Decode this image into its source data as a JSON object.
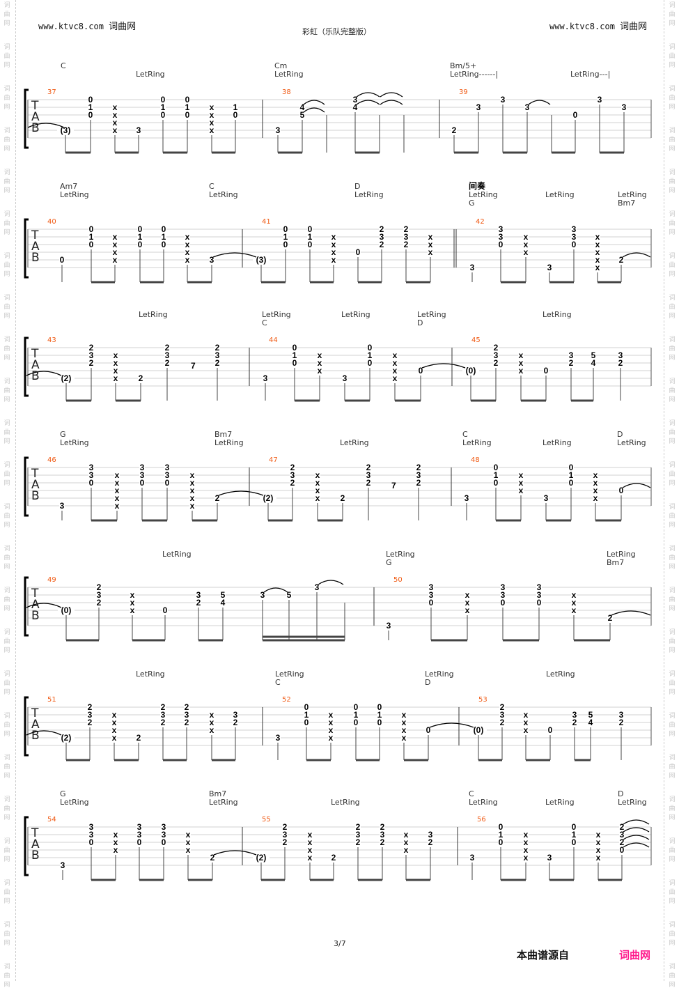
{
  "header": {
    "site_left": "www.ktvc8.com",
    "site_left_cn": "词曲网",
    "site_right": "www.ktvc8.com",
    "site_right_cn": "词曲网",
    "title": "彩虹（乐队完整版）"
  },
  "watermark": "词曲网",
  "colors": {
    "measure_number": "#f05a14",
    "brand": "#ff1a8c"
  },
  "systems": [
    {
      "labels": [
        [
          "C"
        ],
        [
          "LetRing"
        ],
        [
          "Cm",
          "LetRing"
        ],
        [
          "Bm/5+",
          "LetRing------|"
        ],
        [
          "LetRing---|"
        ]
      ],
      "measures": [
        {
          "number": "37",
          "columns": [
            ",,,,(3),",
            "0,1,0,,,",
            ",x,x,x,x,",
            ",,,,3,",
            "0,1,0,,,",
            "0,1,0,,,",
            ",x,x,x,x,",
            ",1,0,,,"
          ]
        },
        {
          "number": "38",
          "columns": [
            ",,,,3,",
            ",4,5,,,",
            ",,,,,",
            "3,4,,,,",
            ",,,,,",
            ",,,,,"
          ]
        },
        {
          "number": "39",
          "columns": [
            ",,,,2,",
            ",3,,,,",
            "3,,,,,",
            ",3,,,,",
            ",,,,,",
            ",,0,,,",
            "3,,,,,",
            ",3,,,,"
          ]
        }
      ]
    },
    {
      "labels": [
        [
          "Am7",
          "LetRing"
        ],
        [
          "C",
          "LetRing"
        ],
        [
          "D",
          "LetRing"
        ],
        [
          "间奏",
          "LetRing",
          "G"
        ],
        [
          "LetRing"
        ],
        [
          "LetRing",
          "Bm7"
        ]
      ],
      "measures": [
        {
          "number": "40",
          "columns": [
            ",,,,0,",
            "0,1,0,,,",
            ",x,x,x,x,",
            "0,1,0,,,",
            "0,1,0,,,",
            ",x,x,x,x,",
            ",,,,3,"
          ]
        },
        {
          "number": "41",
          "columns": [
            ",,,,(3),",
            "0,1,0,,,",
            "0,1,0,,,",
            ",x,x,x,x,",
            ",,,0,,",
            "2,3,2,,,",
            "2,3,2,,,",
            ",x,x,x,,"
          ]
        },
        {
          "number": "42",
          "columns": [
            ",,,,,3",
            "3,3,0,,,",
            ",x,x,x,,",
            ",,,,,3",
            "3,3,0,,,",
            ",x,x,x,x,x",
            ",,,,2,"
          ]
        }
      ]
    },
    {
      "labels": [
        [
          "LetRing"
        ],
        [
          "LetRing",
          "C"
        ],
        [
          "LetRing"
        ],
        [
          "LetRing",
          "D"
        ],
        [
          "LetRing"
        ]
      ],
      "measures": [
        {
          "number": "43",
          "columns": [
            ",,,,(2),",
            "2,3,2,,,",
            ",x,x,x,x,",
            ",,,,2,",
            "2,3,2,,,",
            "2,3,2,,,"
          ]
        },
        {
          "number": "44",
          "columns": [
            ",,,,3,",
            "0,1,0,,,",
            ",x,x,x,,",
            ",,,,3,",
            "0,1,0,,,",
            ",x,x,x,x,",
            ",,,0,,"
          ]
        },
        {
          "number": "45",
          "columns": [
            ",,,(0),,",
            "2,3,2,,,",
            ",x,x,x,,",
            ",,,0,,",
            ",3,2,,,",
            ",5,4,,,",
            ",3,2,,,"
          ]
        }
      ]
    },
    {
      "labels": [
        [
          "G",
          "LetRing"
        ],
        [
          "Bm7",
          "LetRing"
        ],
        [
          "LetRing"
        ],
        [
          "C",
          "LetRing"
        ],
        [
          "LetRing"
        ],
        [
          "D",
          "LetRing"
        ]
      ],
      "measures": [
        {
          "number": "46",
          "columns": [
            ",,,,,3",
            "3,3,0,,,",
            ",x,x,x,x,x",
            "3,3,0,,,",
            "3,3,0,,,",
            ",x,x,x,x,x",
            ",,,,2,"
          ]
        },
        {
          "number": "47",
          "columns": [
            ",,,,(2),",
            "2,3,2,,,",
            ",x,x,x,x,",
            ",,,,2,",
            "2,3,2,,,",
            "2,3,2,,,"
          ]
        },
        {
          "number": "48",
          "columns": [
            ",,,,3,",
            "0,1,0,,,",
            ",x,x,x,,",
            ",,,,3,",
            "0,1,0,,,",
            ",x,x,x,x,",
            ",,,0,,"
          ]
        }
      ]
    },
    {
      "labels": [
        [
          "LetRing"
        ],
        [
          "LetRing",
          "G"
        ],
        [
          "LetRing",
          "Bm7"
        ]
      ],
      "measures": [
        {
          "number": "49",
          "columns": [
            ",,,(0),,",
            "2,3,2,,,",
            ",x,x,x,,",
            ",,,0,,",
            ",3,2,,,",
            ",5,4,,,",
            ",3,,,,",
            ",5,,,,",
            "3,,,,,",
            ",,,,,"
          ]
        },
        {
          "number": "50",
          "columns": [
            ",,,,,3",
            "3,3,0,,,",
            ",x,x,x,,",
            "3,3,0,,,",
            "3,3,0,,,",
            ",x,x,x,,",
            ",,,,2,"
          ]
        }
      ]
    },
    {
      "labels": [
        [
          "LetRing"
        ],
        [
          "LetRing",
          "C"
        ],
        [
          "LetRing",
          "D"
        ],
        [
          "LetRing"
        ]
      ],
      "measures": [
        {
          "number": "51",
          "columns": [
            ",,,,(2),",
            "2,3,2,,,",
            ",x,x,x,x,",
            ",,,,2,",
            "2,3,2,,,",
            "2,3,2,,,",
            ",x,x,x,,",
            ",3,2,,,"
          ]
        },
        {
          "number": "52",
          "columns": [
            ",,,,3,",
            "0,1,0,,,",
            ",x,x,x,x,",
            "0,1,0,,,",
            "0,1,0,,,",
            ",x,x,x,x,",
            ",,,0,,"
          ]
        },
        {
          "number": "53",
          "columns": [
            ",,,(0),,",
            "2,3,2,,,",
            ",x,x,x,,",
            ",,,0,,",
            ",3,2,,,",
            ",5,4,,,",
            ",3,2,,,"
          ]
        }
      ]
    },
    {
      "labels": [
        [
          "G",
          "LetRing"
        ],
        [
          "Bm7",
          "LetRing"
        ],
        [
          "LetRing"
        ],
        [
          "C",
          "LetRing"
        ],
        [
          "LetRing"
        ],
        [
          "D",
          "LetRing"
        ]
      ],
      "measures": [
        {
          "number": "54",
          "columns": [
            ",,,,,3",
            "3,3,0,,,",
            ",x,x,x,,",
            "3,3,0,,,",
            "3,3,0,,,",
            ",x,x,x,,",
            ",,,,2,"
          ]
        },
        {
          "number": "55",
          "columns": [
            ",,,,(2),",
            "2,3,2,,,",
            ",x,x,x,x,",
            ",,,,2,",
            "2,3,2,,,",
            "2,3,2,,,",
            ",x,x,x,,",
            ",3,2,,,"
          ]
        },
        {
          "number": "56",
          "columns": [
            ",,,,3,",
            "0,1,0,,,",
            ",x,x,x,x,",
            ",,,,3,",
            "0,1,0,,,",
            ",x,x,x,x,",
            "2,3,2,0,,"
          ]
        }
      ]
    }
  ],
  "tab_clef": [
    "T",
    "A",
    "B"
  ],
  "footer": {
    "page": "3/7",
    "source_label": "本曲谱源自",
    "source_brand": "词曲网"
  }
}
